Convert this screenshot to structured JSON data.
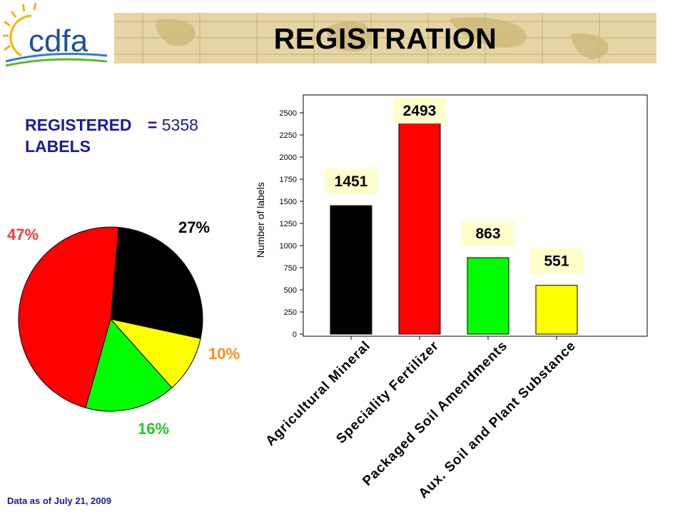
{
  "header": {
    "title": "REGISTRATION",
    "logo_text": "cdfa"
  },
  "summary": {
    "registered_label": "REGISTERED",
    "equals": "=",
    "registered_count": "5358",
    "labels_word": "LABELS"
  },
  "footnote": "Data as of July 21, 2009",
  "colors": {
    "black": "#000000",
    "red": "#ff0000",
    "green": "#00ff00",
    "yellow": "#ffff00",
    "accent_blue": "#1b1b9c",
    "orange_label": "#ff8c1a",
    "green_label": "#22cc22",
    "data_label_bg": "#ffffcc"
  },
  "chart_data": [
    {
      "type": "pie",
      "slices": [
        {
          "category": "Agricultural Mineral",
          "label": "27%",
          "value": 27,
          "color": "#000000"
        },
        {
          "category": "Aux. Soil and Plant Substance",
          "label": "10%",
          "value": 10,
          "color": "#ffff00"
        },
        {
          "category": "Packaged Soil Amendments",
          "label": "16%",
          "value": 16,
          "color": "#00ff00"
        },
        {
          "category": "Speciality Fertilizer",
          "label": "47%",
          "value": 47,
          "color": "#ff0000"
        }
      ]
    },
    {
      "type": "bar",
      "categories": [
        "Agricultural Mineral",
        "Speciality Fertilizer",
        "Packaged Soil Amendments",
        "Aux. Soil and Plant Substance"
      ],
      "values": [
        1451,
        2493,
        863,
        551
      ],
      "data_labels": [
        "1451",
        "2493",
        "863",
        "551"
      ],
      "colors": [
        "#000000",
        "#ff0000",
        "#00ff00",
        "#ffff00"
      ],
      "ylabel": "Number of labels",
      "ylim": [
        0,
        2500
      ],
      "yticks": [
        "0",
        "250",
        "500",
        "750",
        "1000",
        "1250",
        "1500",
        "1750",
        "2000",
        "2250",
        "2500"
      ],
      "grid": false
    }
  ]
}
